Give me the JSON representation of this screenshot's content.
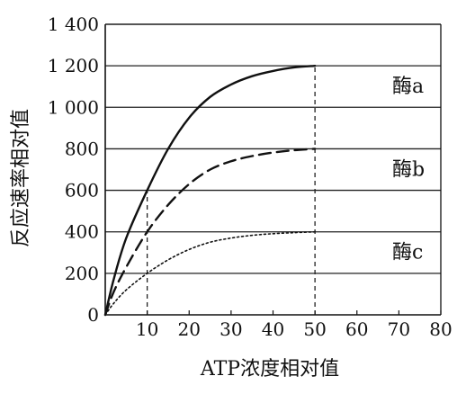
{
  "chart_data": {
    "type": "line",
    "title": "",
    "xlabel": "ATP浓度相对值",
    "ylabel": "反应速率相对值",
    "xlim": [
      0,
      80
    ],
    "ylim": [
      0,
      1400
    ],
    "x_ticks": [
      "10",
      "20",
      "30",
      "40",
      "50",
      "60",
      "70",
      "80"
    ],
    "y_ticks": [
      "0",
      "200",
      "400",
      "600",
      "800",
      "1 000",
      "1 200",
      "1 400"
    ],
    "y_tick_values": [
      0,
      200,
      400,
      600,
      800,
      1000,
      1200,
      1400
    ],
    "x_tick_values": [
      10,
      20,
      30,
      40,
      50,
      60,
      70,
      80
    ],
    "grid": "horizontal",
    "reference_lines_x": [
      10,
      50
    ],
    "series": [
      {
        "name": "酶a",
        "style": "solid",
        "x": [
          0,
          2,
          5,
          10,
          15,
          20,
          25,
          30,
          35,
          40,
          45,
          50
        ],
        "y": [
          0,
          170,
          370,
          600,
          800,
          950,
          1050,
          1110,
          1150,
          1175,
          1192,
          1200
        ]
      },
      {
        "name": "酶b",
        "style": "dashed",
        "x": [
          0,
          2,
          5,
          10,
          15,
          20,
          25,
          30,
          35,
          40,
          45,
          50
        ],
        "y": [
          0,
          110,
          230,
          400,
          530,
          630,
          700,
          740,
          765,
          782,
          793,
          800
        ]
      },
      {
        "name": "酶c",
        "style": "dotted",
        "x": [
          0,
          2,
          5,
          10,
          15,
          20,
          25,
          30,
          35,
          40,
          45,
          50
        ],
        "y": [
          0,
          55,
          120,
          200,
          265,
          315,
          350,
          370,
          383,
          391,
          396,
          400
        ]
      }
    ]
  }
}
